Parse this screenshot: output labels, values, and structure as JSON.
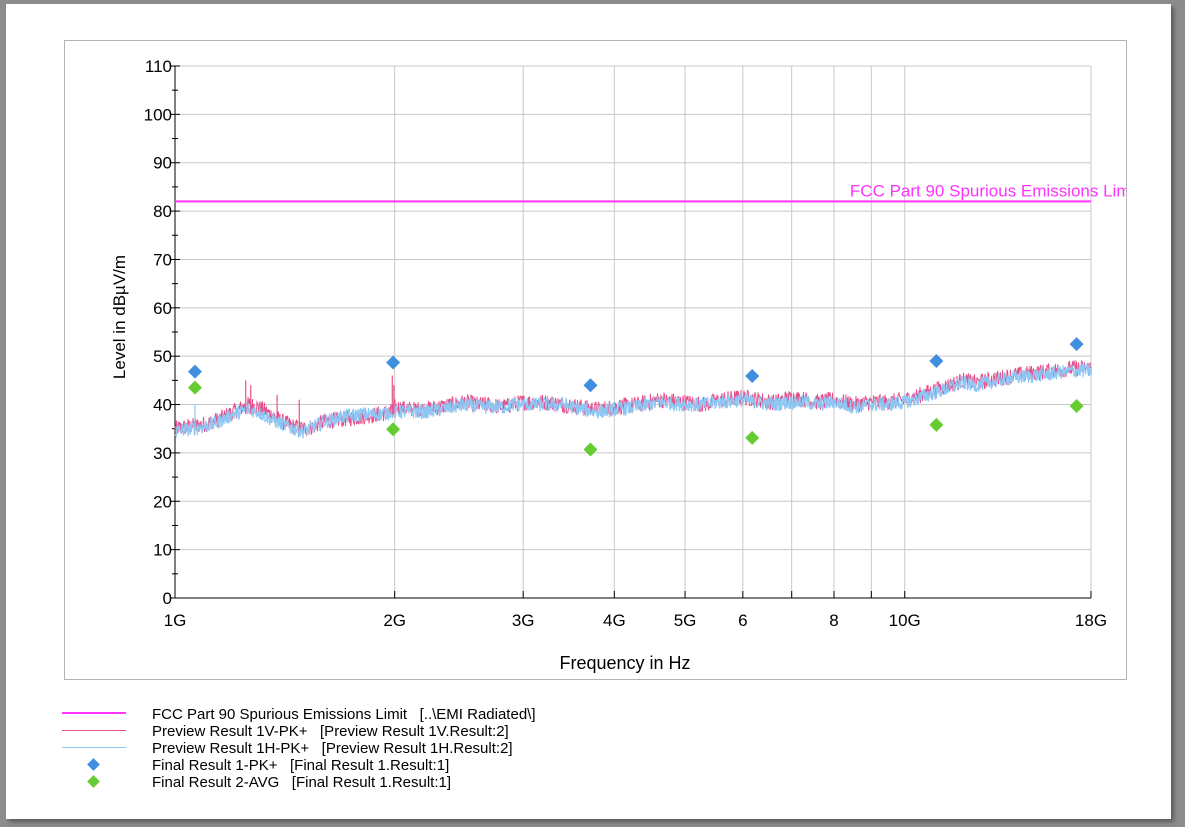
{
  "colors": {
    "limit": "#ff33ff",
    "vertical": "#e8508c",
    "horizontal": "#8ec6f4",
    "pk": "#3f8ee0",
    "avg": "#66cc33"
  },
  "chart_data": {
    "type": "line",
    "xlabel": "Frequency in Hz",
    "ylabel": "Level in dBµV/m",
    "x_scale": "log",
    "xlim": [
      1,
      18
    ],
    "ylim": [
      0,
      110
    ],
    "grid": true,
    "legend_position": "bottom",
    "y_ticks": [
      {
        "value": 0,
        "label": "0"
      },
      {
        "value": 10,
        "label": "10"
      },
      {
        "value": 20,
        "label": "20"
      },
      {
        "value": 30,
        "label": "30"
      },
      {
        "value": 40,
        "label": "40"
      },
      {
        "value": 50,
        "label": "50"
      },
      {
        "value": 60,
        "label": "60"
      },
      {
        "value": 70,
        "label": "70"
      },
      {
        "value": 80,
        "label": "80"
      },
      {
        "value": 90,
        "label": "90"
      },
      {
        "value": 100,
        "label": "100"
      },
      {
        "value": 110,
        "label": "110"
      }
    ],
    "x_ticks": [
      {
        "value": 1,
        "label": "1G"
      },
      {
        "value": 2,
        "label": "2G"
      },
      {
        "value": 3,
        "label": "3G"
      },
      {
        "value": 4,
        "label": "4G"
      },
      {
        "value": 5,
        "label": "5G"
      },
      {
        "value": 6,
        "label": "6"
      },
      {
        "value": 7,
        "label": ""
      },
      {
        "value": 8,
        "label": "8"
      },
      {
        "value": 9,
        "label": ""
      },
      {
        "value": 10,
        "label": "10G"
      },
      {
        "value": 18,
        "label": "18G"
      }
    ],
    "limit_line": {
      "name": "FCC Part 90 Spurious Emissions Limit",
      "value": 82
    },
    "series": [
      {
        "name": "Preview Result 1V-PK+",
        "kind": "line",
        "x": [
          1.0,
          1.05,
          1.1,
          1.15,
          1.2,
          1.26,
          1.3,
          1.35,
          1.4,
          1.45,
          1.5,
          1.55,
          1.6,
          1.7,
          1.8,
          1.9,
          1.98,
          2.0,
          2.1,
          2.2,
          2.3,
          2.4,
          2.5,
          2.6,
          2.7,
          2.8,
          2.9,
          3.0,
          3.2,
          3.4,
          3.6,
          3.8,
          4.0,
          4.3,
          4.6,
          5.0,
          5.3,
          5.6,
          6.0,
          6.3,
          6.6,
          7.0,
          7.3,
          7.6,
          8.0,
          8.5,
          9.0,
          9.5,
          10.0,
          10.5,
          11.0,
          11.5,
          12.0,
          12.5,
          13.0,
          13.5,
          14.0,
          15.0,
          16.0,
          17.0,
          18.0
        ],
        "y": [
          35,
          35.5,
          36,
          37,
          38.5,
          40,
          39.5,
          38,
          36.5,
          35.5,
          35,
          35.5,
          36.5,
          37,
          37.5,
          38,
          38.5,
          39.5,
          39,
          39,
          39.5,
          40,
          40.5,
          40,
          40,
          39.5,
          40,
          40.5,
          40.5,
          40,
          39.5,
          39,
          39.5,
          40,
          41,
          40.5,
          40,
          41,
          41.5,
          41,
          40.5,
          41.5,
          41,
          40.5,
          41,
          40,
          40.5,
          40.5,
          41,
          42,
          43,
          44,
          45,
          44.5,
          45,
          45.5,
          46,
          46.5,
          47,
          47.5,
          47.5
        ]
      },
      {
        "name": "Preview Result 1H-PK+",
        "kind": "line",
        "x": [
          1.0,
          1.05,
          1.1,
          1.15,
          1.2,
          1.26,
          1.3,
          1.35,
          1.4,
          1.45,
          1.5,
          1.55,
          1.6,
          1.7,
          1.8,
          1.9,
          1.98,
          2.0,
          2.1,
          2.2,
          2.3,
          2.4,
          2.5,
          2.6,
          2.7,
          2.8,
          2.9,
          3.0,
          3.2,
          3.4,
          3.6,
          3.8,
          4.0,
          4.3,
          4.6,
          5.0,
          5.3,
          5.6,
          6.0,
          6.3,
          6.6,
          7.0,
          7.3,
          7.6,
          8.0,
          8.5,
          9.0,
          9.5,
          10.0,
          10.5,
          11.0,
          11.5,
          12.0,
          12.5,
          13.0,
          13.5,
          14.0,
          15.0,
          16.0,
          17.0,
          18.0
        ],
        "y": [
          34.5,
          35,
          35.5,
          36.5,
          38,
          39,
          38.5,
          37,
          36,
          35,
          34.5,
          35.5,
          36.5,
          37.5,
          38,
          38,
          38.5,
          38.5,
          38.5,
          38.5,
          39,
          39.5,
          40,
          39.5,
          39.5,
          39.5,
          40,
          40,
          40,
          40,
          39,
          38.5,
          39,
          39.5,
          40.5,
          40,
          40,
          40.5,
          41,
          40.5,
          40,
          40.5,
          40.5,
          40,
          40.5,
          39.5,
          40,
          40,
          40.5,
          41.5,
          42.5,
          43.5,
          44.5,
          44,
          44.5,
          45,
          45.5,
          46,
          46.5,
          47,
          47
        ]
      },
      {
        "name": "Final Result 1-PK+",
        "kind": "points",
        "x": [
          1.065,
          1.99,
          3.71,
          6.18,
          11.05,
          17.2
        ],
        "y": [
          46.8,
          48.7,
          44.0,
          45.9,
          49.0,
          52.5
        ]
      },
      {
        "name": "Final Result 2-AVG",
        "kind": "points",
        "x": [
          1.065,
          1.99,
          3.71,
          6.18,
          11.05,
          17.2
        ],
        "y": [
          43.5,
          34.9,
          30.7,
          33.1,
          35.8,
          39.7
        ]
      }
    ]
  },
  "legend": [
    {
      "kind": "line-thick",
      "color_key": "limit",
      "label": "FCC Part 90 Spurious Emissions Limit",
      "source": "[..\\EMI Radiated\\]"
    },
    {
      "kind": "line",
      "color_key": "vertical",
      "label": "Preview Result 1V-PK+",
      "source": "[Preview Result 1V.Result:2]"
    },
    {
      "kind": "line",
      "color_key": "horizontal",
      "label": "Preview Result 1H-PK+",
      "source": "[Preview Result 1H.Result:2]"
    },
    {
      "kind": "diamond",
      "color_key": "pk",
      "label": "Final Result 1-PK+",
      "source": "[Final Result 1.Result:1]"
    },
    {
      "kind": "diamond",
      "color_key": "avg",
      "label": "Final Result 2-AVG",
      "source": "[Final Result 1.Result:1]"
    }
  ]
}
